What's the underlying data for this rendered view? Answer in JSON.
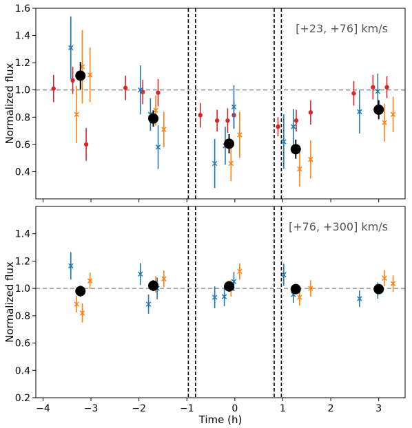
{
  "chart_data": [
    {
      "type": "scatter",
      "annotation": "[+23, +76] km/s",
      "ylabel": "Normalized flux",
      "xlabel": "",
      "xlim": [
        -4.15,
        3.55
      ],
      "ylim": [
        0.2,
        1.6
      ],
      "xticks": [
        -4,
        -3,
        -2,
        -1,
        0,
        1,
        2,
        3
      ],
      "xtick_labels": [],
      "yticks": [
        0.4,
        0.6,
        0.8,
        1.0,
        1.2,
        1.4,
        1.6
      ],
      "ytick_labels": [
        "0.4",
        "0.6",
        "0.8",
        "1.0",
        "1.2",
        "1.4",
        "1.6"
      ],
      "reference_y": 1.0,
      "vertical_lines": [
        -0.97,
        -0.82,
        0.82,
        0.97
      ],
      "series": [
        {
          "color": "#d62728",
          "marker": "dot",
          "points": [
            {
              "x": -3.78,
              "y": 1.01,
              "err": 0.1
            },
            {
              "x": -3.38,
              "y": 1.07,
              "err": 0.1
            },
            {
              "x": -3.1,
              "y": 0.6,
              "err": 0.12
            },
            {
              "x": -2.28,
              "y": 1.015,
              "err": 0.09
            },
            {
              "x": -1.92,
              "y": 0.985,
              "err": 0.09
            },
            {
              "x": -1.6,
              "y": 0.98,
              "err": 0.1
            },
            {
              "x": -0.72,
              "y": 0.815,
              "err": 0.09
            },
            {
              "x": -0.37,
              "y": 0.775,
              "err": 0.08
            },
            {
              "x": -0.15,
              "y": 0.775,
              "err": 0.09
            },
            {
              "x": -0.02,
              "y": 0.815,
              "err": 0.1
            },
            {
              "x": 0.9,
              "y": 0.73,
              "err": 0.07
            },
            {
              "x": 1.28,
              "y": 0.775,
              "err": 0.08
            },
            {
              "x": 1.58,
              "y": 0.835,
              "err": 0.09
            },
            {
              "x": 2.48,
              "y": 0.975,
              "err": 0.09
            },
            {
              "x": 2.88,
              "y": 1.02,
              "err": 0.09
            },
            {
              "x": 3.17,
              "y": 1.02,
              "err": 0.08
            }
          ]
        },
        {
          "color": "#1f77b4",
          "marker": "x",
          "points": [
            {
              "x": -3.42,
              "y": 1.31,
              "err": 0.23
            },
            {
              "x": -1.97,
              "y": 1.0,
              "err": 0.18
            },
            {
              "x": -1.76,
              "y": 0.82,
              "err": 0.12
            },
            {
              "x": -1.6,
              "y": 0.58,
              "err": 0.16
            },
            {
              "x": -0.42,
              "y": 0.46,
              "err": 0.18
            },
            {
              "x": -0.2,
              "y": 0.59,
              "err": 0.14
            },
            {
              "x": -0.02,
              "y": 0.875,
              "err": 0.16
            },
            {
              "x": 1.02,
              "y": 0.62,
              "err": 0.2
            },
            {
              "x": 1.22,
              "y": 0.73,
              "err": 0.13
            },
            {
              "x": 2.6,
              "y": 0.84,
              "err": 0.16
            },
            {
              "x": 2.98,
              "y": 0.99,
              "err": 0.13
            }
          ]
        },
        {
          "color": "#ff7f0e",
          "marker": "x",
          "points": [
            {
              "x": -3.3,
              "y": 0.82,
              "err": 0.21
            },
            {
              "x": -3.18,
              "y": 1.17,
              "err": 0.27
            },
            {
              "x": -3.02,
              "y": 1.11,
              "err": 0.2
            },
            {
              "x": -1.65,
              "y": 0.85,
              "err": 0.11
            },
            {
              "x": -1.48,
              "y": 0.71,
              "err": 0.13
            },
            {
              "x": -0.08,
              "y": 0.46,
              "err": 0.13
            },
            {
              "x": 0.1,
              "y": 0.67,
              "err": 0.17
            },
            {
              "x": 1.35,
              "y": 0.42,
              "err": 0.13
            },
            {
              "x": 1.58,
              "y": 0.49,
              "err": 0.14
            },
            {
              "x": 3.12,
              "y": 0.76,
              "err": 0.14
            },
            {
              "x": 3.3,
              "y": 0.82,
              "err": 0.13
            }
          ]
        },
        {
          "color": "#000000",
          "marker": "big-dot",
          "points": [
            {
              "x": -3.22,
              "y": 1.105,
              "err": 0.1
            },
            {
              "x": -1.7,
              "y": 0.79,
              "err": 0.06
            },
            {
              "x": -0.12,
              "y": 0.605,
              "err": 0.07
            },
            {
              "x": 1.27,
              "y": 0.565,
              "err": 0.07
            },
            {
              "x": 3.0,
              "y": 0.855,
              "err": 0.07
            }
          ]
        }
      ]
    },
    {
      "type": "scatter",
      "annotation": "[+76, +300] km/s",
      "ylabel": "Normalized flux",
      "xlabel": "Time (h)",
      "xlim": [
        -4.15,
        3.55
      ],
      "ylim": [
        0.2,
        1.6
      ],
      "xticks": [
        -4,
        -3,
        -2,
        -1,
        0,
        1,
        2,
        3
      ],
      "xtick_labels": [
        "−4",
        "−3",
        "−2",
        "−1",
        "0",
        "1",
        "2",
        "3"
      ],
      "yticks": [
        0.2,
        0.4,
        0.6,
        0.8,
        1.0,
        1.2,
        1.4
      ],
      "ytick_labels": [
        "0.2",
        "0.4",
        "0.6",
        "0.8",
        "1.0",
        "1.2",
        "1.4"
      ],
      "reference_y": 1.0,
      "vertical_lines": [
        -0.97,
        -0.82,
        0.82,
        0.97
      ],
      "series": [
        {
          "color": "#1f77b4",
          "marker": "x",
          "points": [
            {
              "x": -3.42,
              "y": 1.165,
              "err": 0.1
            },
            {
              "x": -1.97,
              "y": 1.105,
              "err": 0.08
            },
            {
              "x": -1.8,
              "y": 0.885,
              "err": 0.07
            },
            {
              "x": -1.62,
              "y": 1.0,
              "err": 0.08
            },
            {
              "x": -0.42,
              "y": 0.935,
              "err": 0.08
            },
            {
              "x": -0.22,
              "y": 0.94,
              "err": 0.07
            },
            {
              "x": -0.02,
              "y": 1.05,
              "err": 0.07
            },
            {
              "x": 1.02,
              "y": 1.1,
              "err": 0.08
            },
            {
              "x": 1.22,
              "y": 0.955,
              "err": 0.06
            },
            {
              "x": 2.6,
              "y": 0.925,
              "err": 0.06
            },
            {
              "x": 2.98,
              "y": 0.985,
              "err": 0.06
            }
          ]
        },
        {
          "color": "#ff7f0e",
          "marker": "x",
          "points": [
            {
              "x": -3.3,
              "y": 0.885,
              "err": 0.06
            },
            {
              "x": -3.18,
              "y": 0.82,
              "err": 0.07
            },
            {
              "x": -3.02,
              "y": 1.055,
              "err": 0.06
            },
            {
              "x": -1.65,
              "y": 1.03,
              "err": 0.06
            },
            {
              "x": -1.48,
              "y": 1.07,
              "err": 0.06
            },
            {
              "x": -0.08,
              "y": 1.0,
              "err": 0.06
            },
            {
              "x": 0.1,
              "y": 1.125,
              "err": 0.06
            },
            {
              "x": 1.35,
              "y": 0.935,
              "err": 0.06
            },
            {
              "x": 1.58,
              "y": 1.0,
              "err": 0.06
            },
            {
              "x": 3.12,
              "y": 1.075,
              "err": 0.06
            },
            {
              "x": 3.3,
              "y": 1.035,
              "err": 0.06
            }
          ]
        },
        {
          "color": "#000000",
          "marker": "big-dot",
          "points": [
            {
              "x": -3.22,
              "y": 0.98,
              "err": 0.04
            },
            {
              "x": -1.7,
              "y": 1.02,
              "err": 0.04
            },
            {
              "x": -0.12,
              "y": 1.015,
              "err": 0.04
            },
            {
              "x": 1.27,
              "y": 0.995,
              "err": 0.03
            },
            {
              "x": 3.0,
              "y": 0.995,
              "err": 0.03
            }
          ]
        }
      ]
    }
  ]
}
